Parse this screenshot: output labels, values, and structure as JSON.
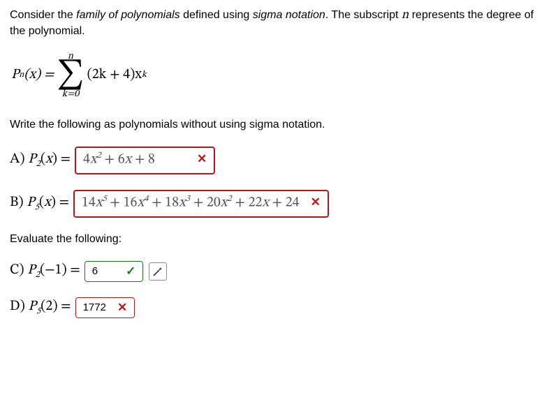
{
  "intro": {
    "part1": "Consider the ",
    "em1": "family of polynomials",
    "part2": " defined using ",
    "em2": "sigma notation",
    "part3": ". The subscript ",
    "em3": "n",
    "part4": " represents the degree of the polynomial."
  },
  "formula": {
    "lhs_html": "P<sub style='font-size:0.6em;font-style:italic'>n</sub>(x) = ",
    "sum_top": "n",
    "sum_bottom": "k=0",
    "term_html": "(2k + 4)x<sup style='font-size:0.65em;font-style:italic'>k</sup>"
  },
  "prompt1": "Write the following as polynomials without using sigma notation.",
  "prompt2": "Evaluate the following:",
  "A": {
    "label_html": "A) <span style='font-style:italic'>P</span><span class='sub'>2</span>(<span style='font-style:italic'>x</span>) =",
    "answer_html": "4<span style='font-style:italic'>x</span><span class='sup'>2</span> + 6<span style='font-style:italic'>x</span> + 8",
    "status": "wrong"
  },
  "B": {
    "label_html": "B) <span style='font-style:italic'>P</span><span class='sub'>5</span>(<span style='font-style:italic'>x</span>) =",
    "answer_html": "14<span style='font-style:italic'>x</span><span class='sup'>5</span> + 16<span style='font-style:italic'>x</span><span class='sup'>4</span> + 18<span style='font-style:italic'>x</span><span class='sup'>3</span> + 20<span style='font-style:italic'>x</span><span class='sup'>2</span> + 22<span style='font-style:italic'>x</span> + 24",
    "status": "wrong"
  },
  "C": {
    "label_html": "C) <span style='font-style:italic'>P</span><span class='sub'>2</span>(−1) =",
    "answer": "6",
    "status": "right"
  },
  "D": {
    "label_html": "D) <span style='font-style:italic'>P</span><span class='sub'>5</span>(2) =",
    "answer": "1772",
    "status": "wrong"
  },
  "marks": {
    "x": "✕",
    "check": "✓"
  },
  "colors": {
    "wrong_border": "#b01818",
    "right_border": "#1a7a1a",
    "mark_x": "#c21515",
    "mark_check": "#1a7a1a",
    "answer_text": "#555555"
  }
}
